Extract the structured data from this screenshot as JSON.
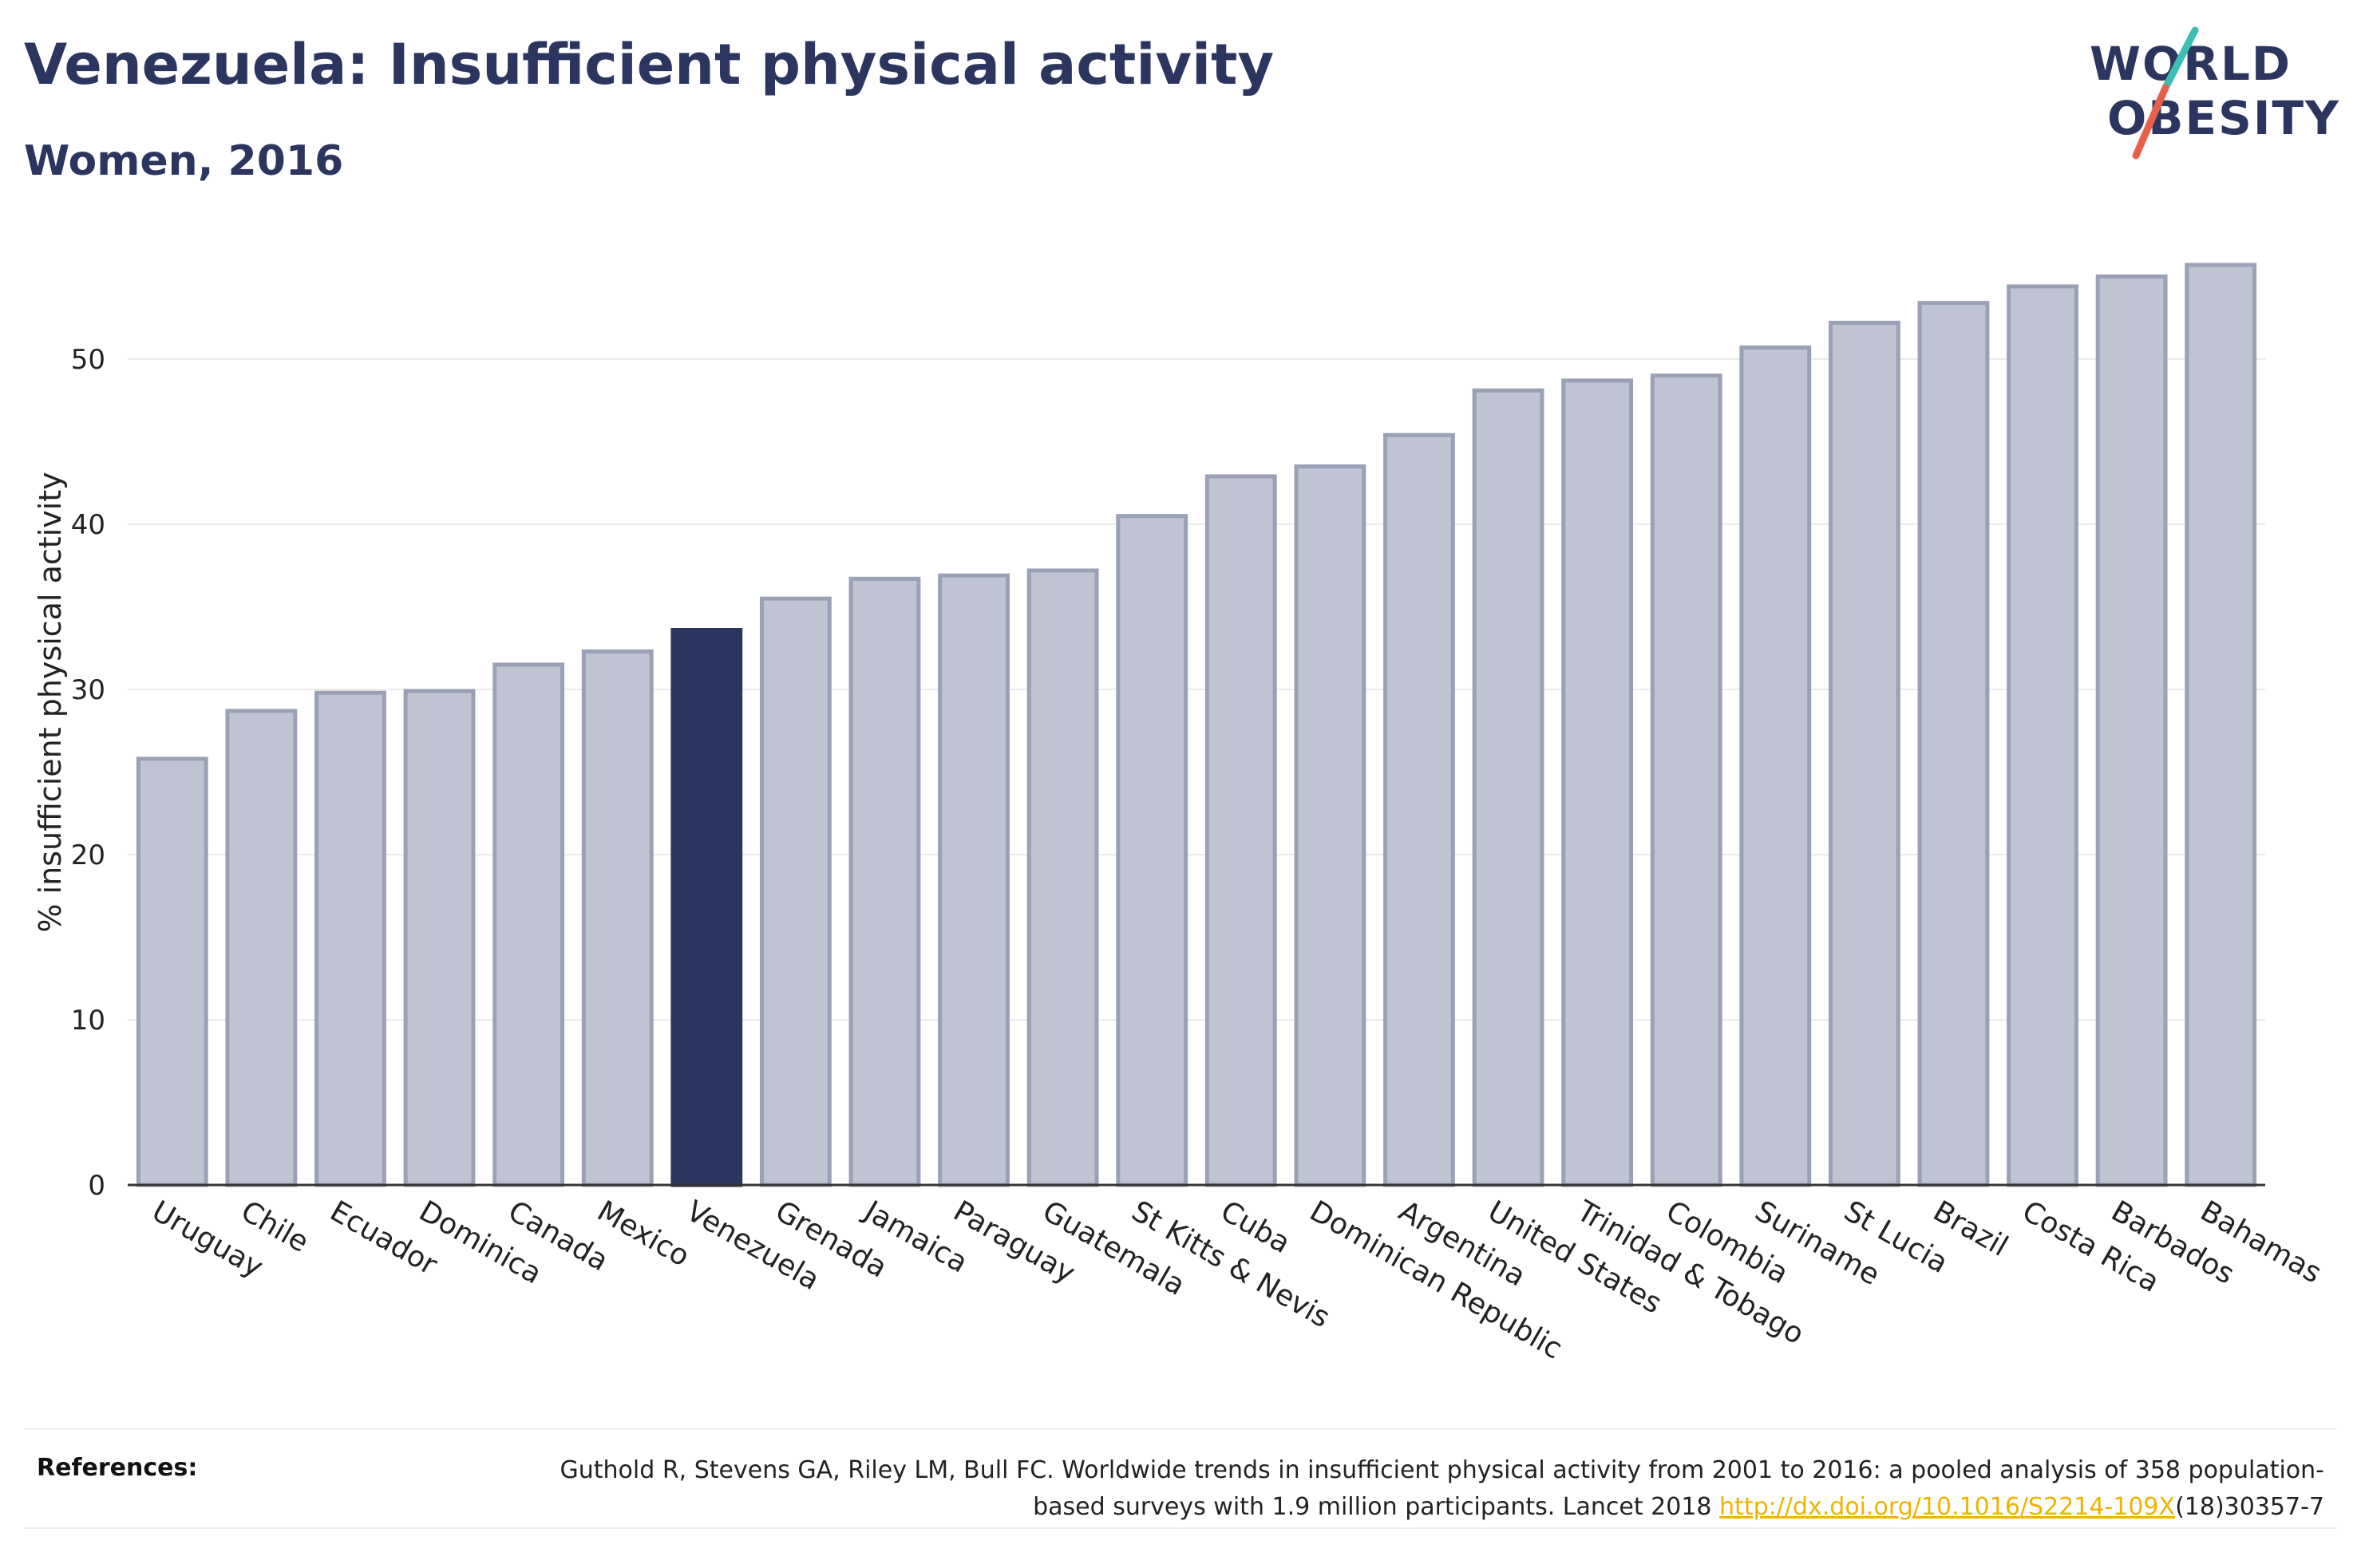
{
  "header": {
    "title": "Venezuela: Insufficient physical activity",
    "subtitle": "Women, 2016"
  },
  "logo": {
    "line1": "WORLD",
    "line2": "OBESITY",
    "accent_colors": [
      "#3dbdb3",
      "#e8604c"
    ]
  },
  "colors": {
    "bar": "#c0c3d1",
    "bar_border": "#9aa0b6",
    "highlight": "#2b3560",
    "grid": "#ececec",
    "axis_text": "#222222"
  },
  "chart_data": {
    "type": "bar",
    "ylabel": "% insufficient physical activity",
    "ylim": [
      0,
      57
    ],
    "yticks": [
      0,
      10,
      20,
      30,
      40,
      50
    ],
    "grid": true,
    "highlight": "Venezuela",
    "categories": [
      "Uruguay",
      "Chile",
      "Ecuador",
      "Dominica",
      "Canada",
      "Mexico",
      "Venezuela",
      "Grenada",
      "Jamaica",
      "Paraguay",
      "Guatemala",
      "St Kitts & Nevis",
      "Cuba",
      "Dominican Republic",
      "Argentina",
      "United States",
      "Trinidad & Tobago",
      "Colombia",
      "Suriname",
      "St Lucia",
      "Brazil",
      "Costa Rica",
      "Barbados",
      "Bahamas"
    ],
    "values": [
      25.8,
      28.7,
      29.8,
      29.9,
      31.5,
      32.3,
      33.6,
      35.5,
      36.7,
      36.9,
      37.2,
      40.5,
      42.9,
      43.5,
      45.4,
      48.1,
      48.7,
      49.0,
      50.7,
      52.2,
      53.4,
      54.4,
      55.0,
      55.7
    ]
  },
  "references": {
    "label": "References:",
    "text_before": "Guthold R, Stevens GA, Riley LM, Bull FC. Worldwide trends in insufficient physical activity from 2001 to 2016: a pooled analysis of 358 population-based surveys with 1.9 million participants. Lancet 2018 ",
    "link": "http://dx.doi.org/10.1016/S2214-109X",
    "text_after": "(18)30357-7"
  }
}
